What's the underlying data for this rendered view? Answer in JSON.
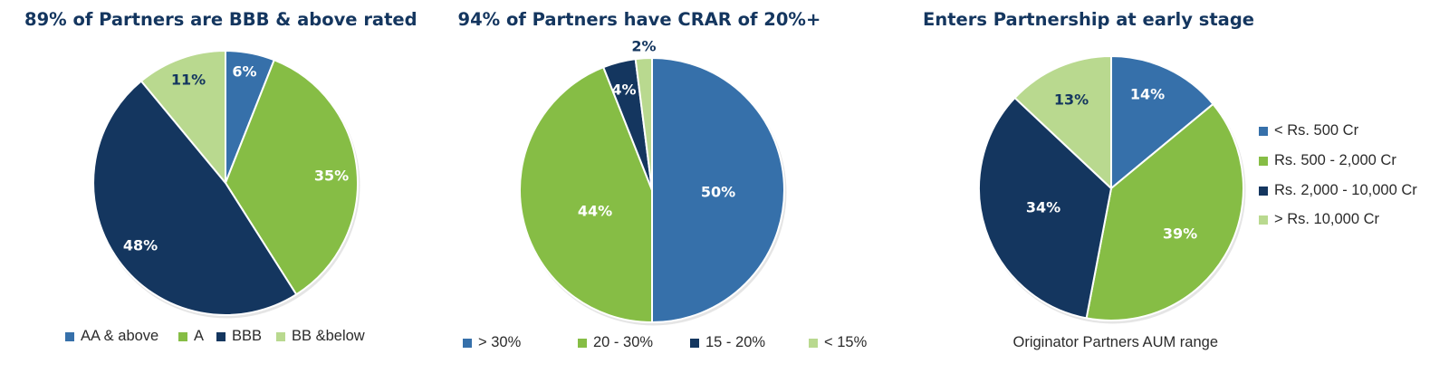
{
  "chart_data": [
    {
      "type": "pie",
      "title": "89% of Partners are BBB & above rated",
      "legend_position": "bottom",
      "slices": [
        {
          "label": "AA & above",
          "value": 6,
          "display": "6%",
          "color": "#3670aa",
          "text_color": "#ffffff"
        },
        {
          "label": "A",
          "value": 35,
          "display": "35%",
          "color": "#86bd45",
          "text_color": "#ffffff"
        },
        {
          "label": "BBB",
          "value": 48,
          "display": "48%",
          "color": "#14365f",
          "text_color": "#ffffff"
        },
        {
          "label": "BB &below",
          "value": 11,
          "display": "11%",
          "color": "#b9d98f",
          "text_color": "#14365f"
        }
      ]
    },
    {
      "type": "pie",
      "title": "94% of Partners have CRAR of 20%+",
      "legend_position": "bottom",
      "slices": [
        {
          "label": "> 30%",
          "value": 50,
          "display": "50%",
          "color": "#3670aa",
          "text_color": "#ffffff"
        },
        {
          "label": "20 - 30%",
          "value": 44,
          "display": "44%",
          "color": "#86bd45",
          "text_color": "#ffffff"
        },
        {
          "label": "15 - 20%",
          "value": 4,
          "display": "4%",
          "color": "#14365f",
          "text_color": "#ffffff"
        },
        {
          "label": "< 15%",
          "value": 2,
          "display": "2%",
          "color": "#b9d98f",
          "text_color": "#14365f"
        }
      ]
    },
    {
      "type": "pie",
      "title": "Enters Partnership at early stage",
      "legend_position": "right",
      "caption": "Originator Partners AUM range",
      "slices": [
        {
          "label": "< Rs. 500 Cr",
          "value": 14,
          "display": "14%",
          "color": "#3670aa",
          "text_color": "#ffffff"
        },
        {
          "label": "Rs. 500 - 2,000 Cr",
          "value": 39,
          "display": "39%",
          "color": "#86bd45",
          "text_color": "#ffffff"
        },
        {
          "label": "Rs. 2,000 - 10,000 Cr",
          "value": 34,
          "display": "34%",
          "color": "#14365f",
          "text_color": "#ffffff"
        },
        {
          "label": "> Rs. 10,000 Cr",
          "value": 13,
          "display": "13%",
          "color": "#b9d98f",
          "text_color": "#14365f"
        }
      ]
    }
  ]
}
